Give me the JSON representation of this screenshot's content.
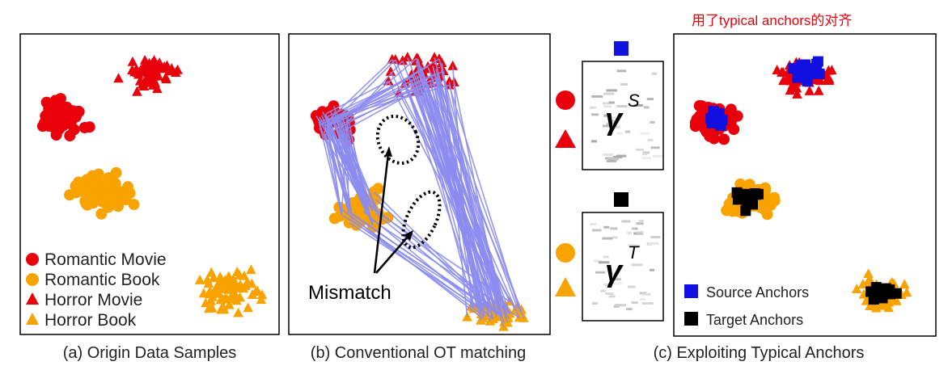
{
  "note_text": "用了typical anchors的对齐",
  "panels": {
    "a": {
      "caption": "(a) Origin Data Samples",
      "legend": [
        {
          "label": "Romantic Movie",
          "shape": "circle",
          "color": "#e8000b"
        },
        {
          "label": "Romantic Book",
          "shape": "circle",
          "color": "#f8a300"
        },
        {
          "label": "Horror Movie",
          "shape": "triangle",
          "color": "#e8000b"
        },
        {
          "label": "Horror Book",
          "shape": "triangle",
          "color": "#f8a300"
        }
      ]
    },
    "b": {
      "caption": "(b) Conventional OT matching",
      "mismatch_label": "Mismatch"
    },
    "c": {
      "caption": "(c) Exploiting Typical Anchors",
      "legend": [
        {
          "label": "Source Anchors",
          "color": "#1010e0"
        },
        {
          "label": "Target Anchors",
          "color": "#000000"
        }
      ]
    }
  },
  "middle": {
    "gamma_source": "γ",
    "gamma_source_sup": "S",
    "gamma_target": "γ",
    "gamma_target_sup": "T",
    "source_square_color": "#1010e0",
    "target_square_color": "#000000"
  },
  "colors": {
    "red": "#e8000b",
    "orange": "#f8a300",
    "line": "#8c8cf0",
    "note": "#e8000b"
  }
}
